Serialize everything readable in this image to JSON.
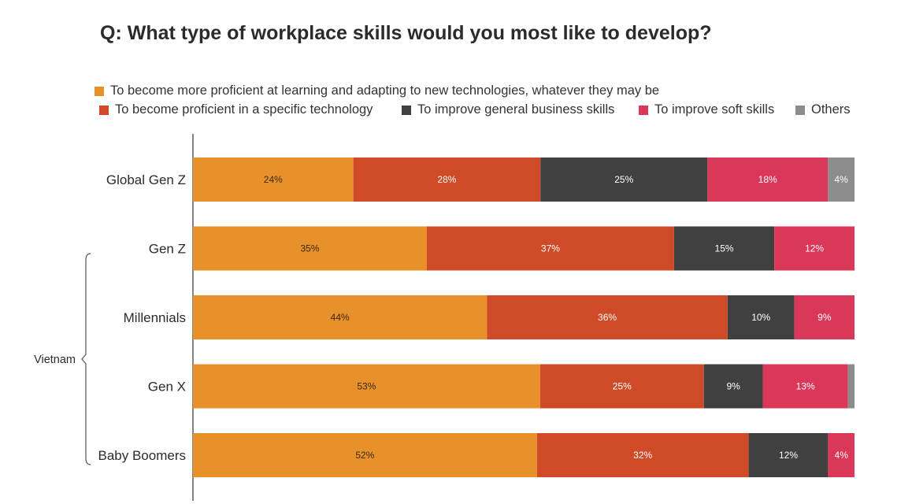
{
  "chart_data": {
    "type": "bar",
    "orientation": "horizontal",
    "stacked": true,
    "title": "Q: What type of workplace skills would you most like to develop?",
    "categories": [
      "Global Gen Z",
      "Gen Z",
      "Millennials",
      "Gen X",
      "Baby Boomers"
    ],
    "group_bracket": {
      "label": "Vietnam",
      "categories": [
        "Gen Z",
        "Millennials",
        "Gen X",
        "Baby Boomers"
      ]
    },
    "series": [
      {
        "name": "To become more proficient at learning and adapting to new technologies, whatever they may be",
        "color": "#E8902A",
        "values": [
          24,
          35,
          44,
          53,
          52
        ],
        "labels": [
          "24%",
          "35%",
          "44%",
          "53%",
          "52%"
        ]
      },
      {
        "name": "To become proficient in a specific technology",
        "color": "#CF4B28",
        "values": [
          28,
          37,
          36,
          25,
          32
        ],
        "labels": [
          "28%",
          "37%",
          "36%",
          "25%",
          "32%"
        ]
      },
      {
        "name": "To improve general business skills",
        "color": "#404040",
        "values": [
          25,
          15,
          10,
          9,
          12
        ],
        "labels": [
          "25%",
          "15%",
          "10%",
          "9%",
          "12%"
        ]
      },
      {
        "name": "To improve soft skills",
        "color": "#DB3859",
        "values": [
          18,
          12,
          9,
          13,
          4
        ],
        "labels": [
          "18%",
          "12%",
          "9%",
          "13%",
          "4%"
        ]
      },
      {
        "name": "Others",
        "color": "#8C8C8C",
        "values": [
          4,
          0,
          0,
          1,
          0
        ],
        "labels": [
          "4%",
          "",
          "",
          "",
          ""
        ]
      }
    ],
    "xlim": [
      0,
      100
    ],
    "legend_position": "top",
    "grid": false
  }
}
